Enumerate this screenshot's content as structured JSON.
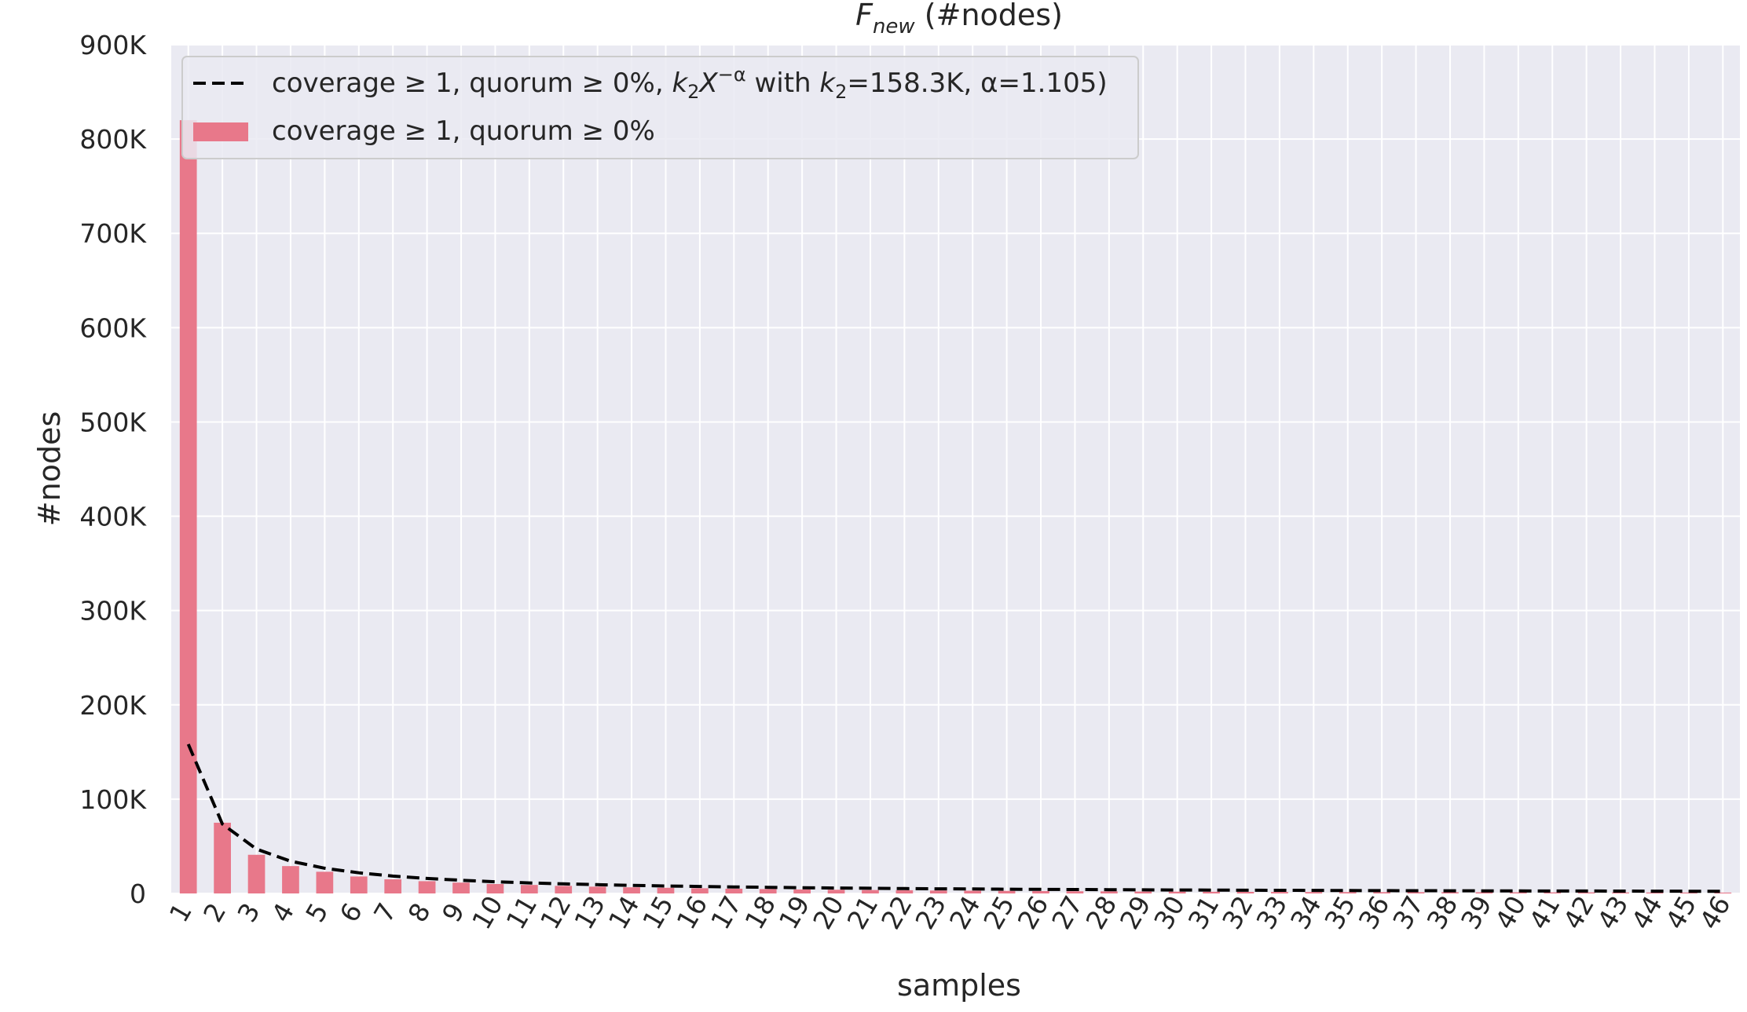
{
  "chart_data": {
    "type": "bar",
    "title": {
      "main": "F",
      "sub": "new",
      "rest": " (#nodes)"
    },
    "xlabel": "samples",
    "ylabel": "#nodes",
    "categories": [
      "1",
      "2",
      "3",
      "4",
      "5",
      "6",
      "7",
      "8",
      "9",
      "10",
      "11",
      "12",
      "13",
      "14",
      "15",
      "16",
      "17",
      "18",
      "19",
      "20",
      "21",
      "22",
      "23",
      "24",
      "25",
      "26",
      "27",
      "28",
      "29",
      "30",
      "31",
      "32",
      "33",
      "34",
      "35",
      "36",
      "37",
      "38",
      "39",
      "40",
      "41",
      "42",
      "43",
      "44",
      "45",
      "46"
    ],
    "ylim": [
      0,
      900000
    ],
    "yticks": [
      {
        "value": 0,
        "label": "0"
      },
      {
        "value": 100000,
        "label": "100K"
      },
      {
        "value": 200000,
        "label": "200K"
      },
      {
        "value": 300000,
        "label": "300K"
      },
      {
        "value": 400000,
        "label": "400K"
      },
      {
        "value": 500000,
        "label": "500K"
      },
      {
        "value": 600000,
        "label": "600K"
      },
      {
        "value": 700000,
        "label": "700K"
      },
      {
        "value": 800000,
        "label": "800K"
      },
      {
        "value": 900000,
        "label": "900K"
      }
    ],
    "grid": true,
    "legend_position": "top-left",
    "colors": {
      "bar": "#e8788a",
      "fit": "#000000",
      "background": "#eaeaf2",
      "grid": "#ffffff"
    },
    "series": [
      {
        "kind": "bar",
        "values": [
          820000,
          75000,
          41000,
          29000,
          23000,
          18000,
          15000,
          13000,
          11500,
          10000,
          9000,
          8000,
          7200,
          6500,
          6000,
          5500,
          5000,
          4600,
          4200,
          3900,
          3600,
          3400,
          3100,
          2900,
          2700,
          2500,
          2300,
          2200,
          2000,
          1900,
          1800,
          1700,
          1600,
          1500,
          1450,
          1400,
          1350,
          1300,
          1250,
          1200,
          1150,
          1100,
          1050,
          1000,
          950,
          900
        ]
      },
      {
        "kind": "line",
        "dashed": true,
        "k2": 158300,
        "alpha": 1.105
      }
    ],
    "legend": [
      {
        "kind": "line",
        "parts": {
          "prefix": "coverage ≥ 1, quorum ≥ 0%, ",
          "k": "k",
          "k_sub": "2",
          "x": "X",
          "exp": "−α",
          "with": " with ",
          "k2": "k",
          "k2_sub": "2",
          "suffix": "=158.3K, α=1.105)"
        }
      },
      {
        "kind": "bar",
        "label": "coverage ≥ 1, quorum ≥ 0%"
      }
    ]
  }
}
